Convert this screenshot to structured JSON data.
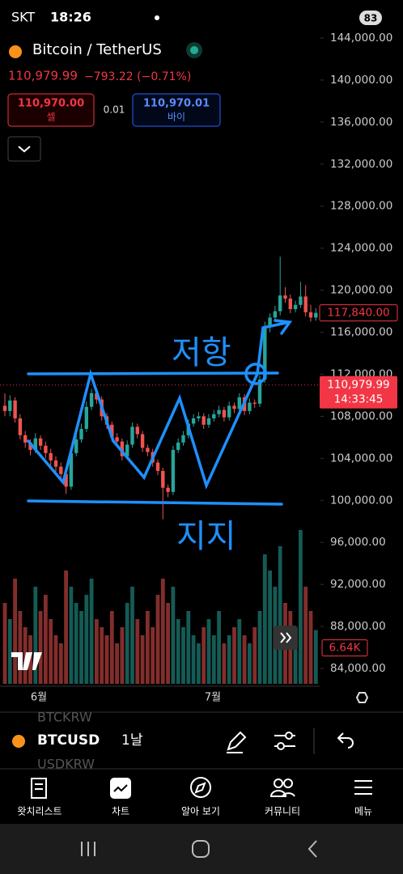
{
  "status": {
    "carrier": "SKT",
    "time": "18:26",
    "battery": "83"
  },
  "header": {
    "symbol": "Bitcoin / TetherUS",
    "price": "110,979.99",
    "change": "−793.22 (−0.71%)",
    "sell_price": "110,970.00",
    "sell": "셀",
    "spread": "0.01",
    "buy_price": "110,970.01",
    "buy": "바이"
  },
  "chart_data": {
    "type": "candlestick",
    "up_color": "#26a69a",
    "down_color": "#ef5350",
    "ylim": [
      84000,
      144000
    ],
    "yticks": [
      {
        "value": 144000,
        "label": "144,000.00"
      },
      {
        "value": 140000,
        "label": "140,000.00"
      },
      {
        "value": 136000,
        "label": "136,000.00"
      },
      {
        "value": 132000,
        "label": "132,000.00"
      },
      {
        "value": 128000,
        "label": "128,000.00"
      },
      {
        "value": 124000,
        "label": "124,000.00"
      },
      {
        "value": 120000,
        "label": "120,000.00"
      },
      {
        "value": 116000,
        "label": "116,000.00"
      },
      {
        "value": 112000,
        "label": "112,000.00"
      },
      {
        "value": 108000,
        "label": "108,000.00"
      },
      {
        "value": 104000,
        "label": "104,000.00"
      },
      {
        "value": 100000,
        "label": "100,000.00"
      },
      {
        "value": 96000,
        "label": "96,000.00"
      },
      {
        "value": 92000,
        "label": "92,000.00"
      },
      {
        "value": 88000,
        "label": "88,000.00"
      },
      {
        "value": 84000,
        "label": "84,000.00"
      }
    ],
    "candles": [
      [
        109000,
        110200,
        108000,
        108500
      ],
      [
        108500,
        110000,
        108000,
        109500
      ],
      [
        109500,
        109800,
        107400,
        107800
      ],
      [
        107800,
        108200,
        105800,
        106200
      ],
      [
        106200,
        106600,
        105000,
        105500
      ],
      [
        105500,
        105800,
        104300,
        104800
      ],
      [
        104800,
        106400,
        104500,
        105900
      ],
      [
        105900,
        106200,
        104800,
        105200
      ],
      [
        105200,
        105600,
        104000,
        104500
      ],
      [
        104500,
        104900,
        103300,
        103800
      ],
      [
        103800,
        104200,
        102700,
        103200
      ],
      [
        103200,
        103600,
        102000,
        102500
      ],
      [
        102500,
        102900,
        100600,
        101300
      ],
      [
        101300,
        104900,
        101000,
        104500
      ],
      [
        104500,
        106300,
        104200,
        105800
      ],
      [
        105800,
        107300,
        105500,
        106800
      ],
      [
        106800,
        109400,
        106500,
        108900
      ],
      [
        108900,
        110600,
        108600,
        110200
      ],
      [
        110200,
        110500,
        109200,
        109600
      ],
      [
        109600,
        109900,
        107600,
        108000
      ],
      [
        108000,
        108300,
        106800,
        107200
      ],
      [
        107200,
        107500,
        105600,
        106000
      ],
      [
        106000,
        106400,
        105200,
        105600
      ],
      [
        105600,
        105900,
        103800,
        104200
      ],
      [
        104200,
        105700,
        103900,
        105300
      ],
      [
        105300,
        107400,
        105000,
        107000
      ],
      [
        107000,
        107300,
        105900,
        106300
      ],
      [
        106300,
        106600,
        104600,
        105000
      ],
      [
        105000,
        105300,
        104200,
        104600
      ],
      [
        104600,
        104900,
        103200,
        103600
      ],
      [
        103600,
        103900,
        102400,
        102800
      ],
      [
        102800,
        103100,
        98200,
        101200
      ],
      [
        101200,
        101500,
        100300,
        100800
      ],
      [
        100800,
        105200,
        100500,
        104800
      ],
      [
        104800,
        105900,
        104500,
        105500
      ],
      [
        105500,
        106600,
        105200,
        106200
      ],
      [
        106200,
        107700,
        105900,
        107300
      ],
      [
        107300,
        108200,
        107000,
        107800
      ],
      [
        107800,
        108400,
        107500,
        108000
      ],
      [
        108000,
        108300,
        106800,
        107200
      ],
      [
        107200,
        108200,
        106900,
        107800
      ],
      [
        107800,
        108600,
        107500,
        108200
      ],
      [
        108200,
        109000,
        107900,
        108600
      ],
      [
        108600,
        108900,
        107500,
        107900
      ],
      [
        107900,
        109400,
        107600,
        109000
      ],
      [
        109000,
        109300,
        108300,
        108700
      ],
      [
        108700,
        110200,
        108400,
        109800
      ],
      [
        109800,
        110100,
        108100,
        108500
      ],
      [
        108500,
        109700,
        108200,
        109300
      ],
      [
        109300,
        109600,
        108800,
        109200
      ],
      [
        109200,
        111900,
        108900,
        111500
      ],
      [
        111500,
        117000,
        111200,
        116500
      ],
      [
        116500,
        117800,
        116000,
        117400
      ],
      [
        117400,
        118500,
        117000,
        118000
      ],
      [
        118000,
        123200,
        117600,
        119500
      ],
      [
        119500,
        120300,
        118800,
        119200
      ],
      [
        119200,
        119600,
        117800,
        118200
      ],
      [
        118200,
        119000,
        117900,
        118600
      ],
      [
        118600,
        120800,
        118300,
        119400
      ],
      [
        119400,
        120500,
        117500,
        117900
      ],
      [
        117900,
        118600,
        117000,
        117400
      ],
      [
        117400,
        118300,
        117100,
        117840
      ]
    ],
    "volume_ylim": [
      0,
      20
    ],
    "volumes": [
      10,
      8,
      13,
      9,
      7,
      6,
      12,
      9,
      11,
      8,
      6,
      5,
      14,
      12,
      10,
      9,
      11,
      13,
      8,
      7,
      6,
      9,
      5,
      7,
      10,
      12,
      8,
      6,
      9,
      7,
      11,
      13,
      10,
      12,
      8,
      7,
      9,
      6,
      5,
      7,
      8,
      6,
      9,
      5,
      6,
      7,
      8,
      6,
      5,
      7,
      9,
      16,
      14,
      12,
      17,
      10,
      9,
      6,
      19,
      12,
      9,
      6.64
    ],
    "volume_label": "6.64K",
    "price_tags": [
      {
        "value": 117840,
        "label": "117,840.00"
      },
      {
        "value": 110979.99,
        "label": "110,979.99",
        "time": "14:33:45"
      }
    ],
    "x_labels": [
      "6월",
      "7월"
    ],
    "annotations": [
      "저항",
      "지지"
    ]
  },
  "toolbar": {
    "symbol": "BTCUSD",
    "interval": "1날",
    "prev_symbol": "BTCKRW",
    "next_symbol": "USDKRW"
  },
  "nav": [
    "왓치리스트",
    "차트",
    "알아 보기",
    "커뮤니티",
    "메뉴"
  ]
}
